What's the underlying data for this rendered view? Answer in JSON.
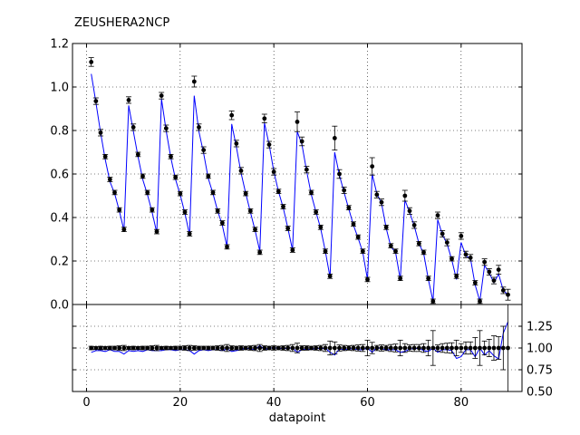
{
  "chart_data": [
    {
      "type": "scatter",
      "panel": "main",
      "title": "ZEUSHERA2NCP",
      "xlabel": "",
      "ylabel": "",
      "xlim": [
        -3,
        93
      ],
      "ylim": [
        0.0,
        1.2
      ],
      "y_ticks": [
        "0.0",
        "0.2",
        "0.4",
        "0.6",
        "0.8",
        "1.0",
        "1.2"
      ],
      "y_tick_values": [
        0.0,
        0.2,
        0.4,
        0.6,
        0.8,
        1.0,
        1.2
      ],
      "grid": true,
      "colors": {
        "data": "#000000",
        "theory": "#0000ff"
      },
      "series": [
        {
          "marker": "errorbar-dot",
          "x": [
            1,
            2,
            3,
            4,
            5,
            6,
            7,
            8,
            9,
            10,
            11,
            12,
            13,
            14,
            15,
            16,
            17,
            18,
            19,
            20,
            21,
            22,
            23,
            24,
            25,
            26,
            27,
            28,
            29,
            30,
            31,
            32,
            33,
            34,
            35,
            36,
            37,
            38,
            39,
            40,
            41,
            42,
            43,
            44,
            45,
            46,
            47,
            48,
            49,
            50,
            51,
            52,
            53,
            54,
            55,
            56,
            57,
            58,
            59,
            60,
            61,
            62,
            63,
            64,
            65,
            66,
            67,
            68,
            69,
            70,
            71,
            72,
            73,
            74,
            75,
            76,
            77,
            78,
            79,
            80,
            81,
            82,
            83,
            84,
            85,
            86,
            87,
            88,
            89,
            90
          ],
          "y": [
            1.115,
            0.935,
            0.79,
            0.68,
            0.575,
            0.515,
            0.435,
            0.345,
            0.94,
            0.815,
            0.69,
            0.59,
            0.515,
            0.435,
            0.335,
            0.96,
            0.81,
            0.68,
            0.585,
            0.51,
            0.425,
            0.325,
            1.025,
            0.815,
            0.71,
            0.59,
            0.515,
            0.43,
            0.375,
            0.265,
            0.87,
            0.74,
            0.615,
            0.51,
            0.43,
            0.345,
            0.24,
            0.855,
            0.735,
            0.61,
            0.52,
            0.45,
            0.35,
            0.25,
            0.84,
            0.75,
            0.62,
            0.515,
            0.425,
            0.355,
            0.245,
            0.13,
            0.765,
            0.6,
            0.525,
            0.445,
            0.37,
            0.31,
            0.245,
            0.115,
            0.635,
            0.505,
            0.47,
            0.355,
            0.27,
            0.245,
            0.12,
            0.5,
            0.43,
            0.365,
            0.28,
            0.24,
            0.12,
            0.015,
            0.41,
            0.325,
            0.285,
            0.21,
            0.13,
            0.315,
            0.23,
            0.215,
            0.1,
            0.015,
            0.195,
            0.15,
            0.11,
            0.16,
            0.065,
            0.045
          ],
          "err": [
            0.02,
            0.015,
            0.015,
            0.01,
            0.01,
            0.01,
            0.01,
            0.01,
            0.015,
            0.015,
            0.01,
            0.01,
            0.01,
            0.01,
            0.01,
            0.015,
            0.015,
            0.01,
            0.01,
            0.01,
            0.01,
            0.01,
            0.025,
            0.015,
            0.015,
            0.01,
            0.01,
            0.01,
            0.01,
            0.01,
            0.02,
            0.015,
            0.015,
            0.01,
            0.01,
            0.01,
            0.01,
            0.02,
            0.015,
            0.015,
            0.01,
            0.01,
            0.01,
            0.01,
            0.045,
            0.02,
            0.015,
            0.01,
            0.01,
            0.01,
            0.01,
            0.01,
            0.055,
            0.02,
            0.015,
            0.01,
            0.01,
            0.01,
            0.01,
            0.01,
            0.04,
            0.015,
            0.015,
            0.01,
            0.01,
            0.01,
            0.01,
            0.025,
            0.015,
            0.015,
            0.01,
            0.01,
            0.01,
            0.01,
            0.015,
            0.015,
            0.015,
            0.01,
            0.01,
            0.015,
            0.015,
            0.015,
            0.01,
            0.01,
            0.015,
            0.015,
            0.015,
            0.02,
            0.015,
            0.025
          ]
        },
        {
          "marker": "line",
          "x": [
            1,
            2,
            3,
            4,
            5,
            6,
            7,
            8,
            9,
            10,
            11,
            12,
            13,
            14,
            15,
            16,
            17,
            18,
            19,
            20,
            21,
            22,
            23,
            24,
            25,
            26,
            27,
            28,
            29,
            30,
            31,
            32,
            33,
            34,
            35,
            36,
            37,
            38,
            39,
            40,
            41,
            42,
            43,
            44,
            45,
            46,
            47,
            48,
            49,
            50,
            51,
            52,
            53,
            54,
            55,
            56,
            57,
            58,
            59,
            60,
            61,
            62,
            63,
            64,
            65,
            66,
            67,
            68,
            69,
            70,
            71,
            72,
            73,
            74,
            75,
            76,
            77,
            78,
            79,
            80,
            81,
            82,
            83,
            84,
            85,
            86,
            87,
            88,
            89,
            90
          ],
          "y": [
            1.06,
            0.93,
            0.79,
            0.665,
            0.565,
            0.51,
            0.43,
            0.34,
            0.915,
            0.795,
            0.68,
            0.575,
            0.505,
            0.425,
            0.33,
            0.945,
            0.8,
            0.675,
            0.575,
            0.505,
            0.42,
            0.32,
            0.96,
            0.795,
            0.695,
            0.58,
            0.51,
            0.43,
            0.365,
            0.265,
            0.83,
            0.725,
            0.605,
            0.51,
            0.425,
            0.34,
            0.245,
            0.835,
            0.735,
            0.61,
            0.52,
            0.445,
            0.35,
            0.25,
            0.795,
            0.735,
            0.615,
            0.505,
            0.425,
            0.35,
            0.245,
            0.125,
            0.7,
            0.595,
            0.515,
            0.44,
            0.365,
            0.305,
            0.24,
            0.115,
            0.6,
            0.51,
            0.465,
            0.35,
            0.265,
            0.24,
            0.115,
            0.48,
            0.425,
            0.36,
            0.28,
            0.235,
            0.115,
            0.015,
            0.39,
            0.32,
            0.28,
            0.205,
            0.115,
            0.285,
            0.225,
            0.21,
            0.09,
            0.015,
            0.18,
            0.145,
            0.1,
            0.14,
            0.065,
            0.045
          ]
        }
      ]
    },
    {
      "type": "scatter",
      "panel": "ratio",
      "title": "",
      "xlabel": "datapoint",
      "ylabel": "",
      "xlim": [
        -3,
        93
      ],
      "ylim": [
        0.5,
        1.5
      ],
      "x_ticks": [
        "0",
        "20",
        "40",
        "60",
        "80"
      ],
      "x_tick_values": [
        0,
        20,
        40,
        60,
        80
      ],
      "y_ticks": [
        "0.50",
        "0.75",
        "1.00",
        "1.25"
      ],
      "y_tick_values": [
        0.5,
        0.75,
        1.0,
        1.25
      ],
      "grid": true,
      "colors": {
        "data": "#000000",
        "theory": "#0000ff"
      },
      "series": [
        {
          "marker": "errorbar-dot",
          "x": [
            1,
            2,
            3,
            4,
            5,
            6,
            7,
            8,
            9,
            10,
            11,
            12,
            13,
            14,
            15,
            16,
            17,
            18,
            19,
            20,
            21,
            22,
            23,
            24,
            25,
            26,
            27,
            28,
            29,
            30,
            31,
            32,
            33,
            34,
            35,
            36,
            37,
            38,
            39,
            40,
            41,
            42,
            43,
            44,
            45,
            46,
            47,
            48,
            49,
            50,
            51,
            52,
            53,
            54,
            55,
            56,
            57,
            58,
            59,
            60,
            61,
            62,
            63,
            64,
            65,
            66,
            67,
            68,
            69,
            70,
            71,
            72,
            73,
            74,
            75,
            76,
            77,
            78,
            79,
            80,
            81,
            82,
            83,
            84,
            85,
            86,
            87,
            88,
            89,
            90
          ],
          "y": [
            1,
            1,
            1,
            1,
            1,
            1,
            1,
            1,
            1,
            1,
            1,
            1,
            1,
            1,
            1,
            1,
            1,
            1,
            1,
            1,
            1,
            1,
            1,
            1,
            1,
            1,
            1,
            1,
            1,
            1,
            1,
            1,
            1,
            1,
            1,
            1,
            1,
            1,
            1,
            1,
            1,
            1,
            1,
            1,
            1,
            1,
            1,
            1,
            1,
            1,
            1,
            1,
            1,
            1,
            1,
            1,
            1,
            1,
            1,
            1,
            1,
            1,
            1,
            1,
            1,
            1,
            1,
            1,
            1,
            1,
            1,
            1,
            1,
            1,
            1,
            1,
            1,
            1,
            1,
            1,
            1,
            1,
            1,
            1,
            1,
            1,
            1,
            1,
            1,
            1
          ],
          "err": [
            0.02,
            0.015,
            0.02,
            0.015,
            0.02,
            0.02,
            0.025,
            0.03,
            0.015,
            0.02,
            0.015,
            0.02,
            0.02,
            0.025,
            0.03,
            0.015,
            0.02,
            0.015,
            0.02,
            0.02,
            0.025,
            0.03,
            0.025,
            0.02,
            0.02,
            0.02,
            0.02,
            0.025,
            0.03,
            0.04,
            0.025,
            0.02,
            0.025,
            0.02,
            0.025,
            0.03,
            0.04,
            0.025,
            0.02,
            0.025,
            0.02,
            0.025,
            0.03,
            0.04,
            0.055,
            0.025,
            0.025,
            0.02,
            0.025,
            0.03,
            0.04,
            0.08,
            0.07,
            0.035,
            0.03,
            0.025,
            0.03,
            0.035,
            0.04,
            0.09,
            0.065,
            0.03,
            0.035,
            0.03,
            0.04,
            0.045,
            0.09,
            0.05,
            0.035,
            0.04,
            0.04,
            0.05,
            0.09,
            0.2,
            0.035,
            0.05,
            0.055,
            0.06,
            0.09,
            0.05,
            0.07,
            0.07,
            0.12,
            0.2,
            0.08,
            0.1,
            0.14,
            0.13,
            0.25,
            0.5
          ]
        },
        {
          "marker": "line",
          "x": [
            1,
            2,
            3,
            4,
            5,
            6,
            7,
            8,
            9,
            10,
            11,
            12,
            13,
            14,
            15,
            16,
            17,
            18,
            19,
            20,
            21,
            22,
            23,
            24,
            25,
            26,
            27,
            28,
            29,
            30,
            31,
            32,
            33,
            34,
            35,
            36,
            37,
            38,
            39,
            40,
            41,
            42,
            43,
            44,
            45,
            46,
            47,
            48,
            49,
            50,
            51,
            52,
            53,
            54,
            55,
            56,
            57,
            58,
            59,
            60,
            61,
            62,
            63,
            64,
            65,
            66,
            67,
            68,
            69,
            70,
            71,
            72,
            73,
            74,
            75,
            76,
            77,
            78,
            79,
            80,
            81,
            82,
            83,
            84,
            85,
            86,
            87,
            88,
            89,
            90
          ],
          "y": [
            0.95,
            0.97,
            0.97,
            0.96,
            0.98,
            0.96,
            0.96,
            0.93,
            0.97,
            0.96,
            0.97,
            0.96,
            0.98,
            0.97,
            0.97,
            0.97,
            0.98,
            0.98,
            0.97,
            0.98,
            0.98,
            0.97,
            0.93,
            0.97,
            0.98,
            0.97,
            0.98,
            0.98,
            0.97,
            0.99,
            0.96,
            0.97,
            0.98,
            1.0,
            0.99,
            0.98,
            1.03,
            0.98,
            1.0,
            1.0,
            1.0,
            0.99,
            1.0,
            1.0,
            0.95,
            0.98,
            0.99,
            0.98,
            1.0,
            0.99,
            1.0,
            0.95,
            0.92,
            0.99,
            0.98,
            0.99,
            0.99,
            0.98,
            0.98,
            1.0,
            0.95,
            1.01,
            0.99,
            0.98,
            0.98,
            0.98,
            0.95,
            0.96,
            0.99,
            0.99,
            1.0,
            0.97,
            0.96,
            1.0,
            0.95,
            0.98,
            0.98,
            0.97,
            0.88,
            0.9,
            0.98,
            0.98,
            0.9,
            1.0,
            0.92,
            0.97,
            0.91,
            0.875,
            1.17,
            1.3
          ]
        }
      ]
    }
  ]
}
